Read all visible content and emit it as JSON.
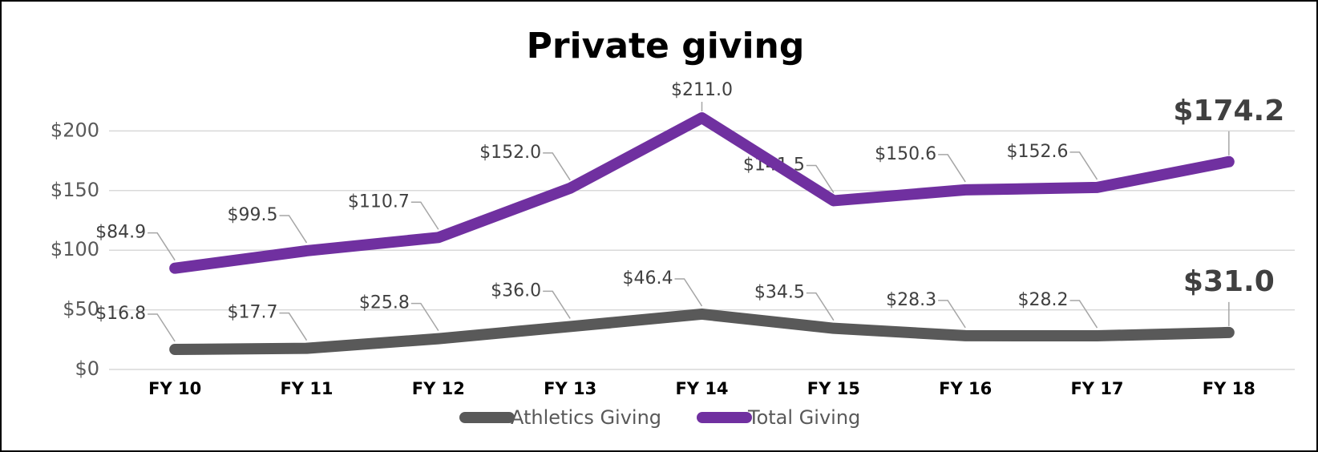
{
  "chart_data": {
    "type": "line",
    "title": "Private giving",
    "categories": [
      "FY 10",
      "FY 11",
      "FY 12",
      "FY 13",
      "FY 14",
      "FY 15",
      "FY 16",
      "FY 17",
      "FY 18"
    ],
    "series": [
      {
        "name": "Athletics Giving",
        "color": "#595959",
        "values": [
          16.8,
          17.7,
          25.8,
          36.0,
          46.4,
          34.5,
          28.3,
          28.2,
          31.0
        ],
        "value_labels": [
          "$16.8",
          "$17.7",
          "$25.8",
          "$36.0",
          "$46.4",
          "$34.5",
          "$28.3",
          "$28.2",
          "$31.0"
        ]
      },
      {
        "name": "Total Giving",
        "color": "#7030a0",
        "values": [
          84.9,
          99.5,
          110.7,
          152.0,
          211.0,
          141.5,
          150.6,
          152.6,
          174.2
        ],
        "value_labels": [
          "$84.9",
          "$99.5",
          "$110.7",
          "$152.0",
          "$211.0",
          "$141.5",
          "$150.6",
          "$152.6",
          "$174.2"
        ]
      }
    ],
    "ylim": [
      0,
      250
    ],
    "yticks": [
      {
        "value": 0,
        "label": "$0"
      },
      {
        "value": 50,
        "label": "$50"
      },
      {
        "value": 100,
        "label": "$100"
      },
      {
        "value": 150,
        "label": "$150"
      },
      {
        "value": 200,
        "label": "$200"
      }
    ],
    "grid": true,
    "legend": "bottom"
  }
}
